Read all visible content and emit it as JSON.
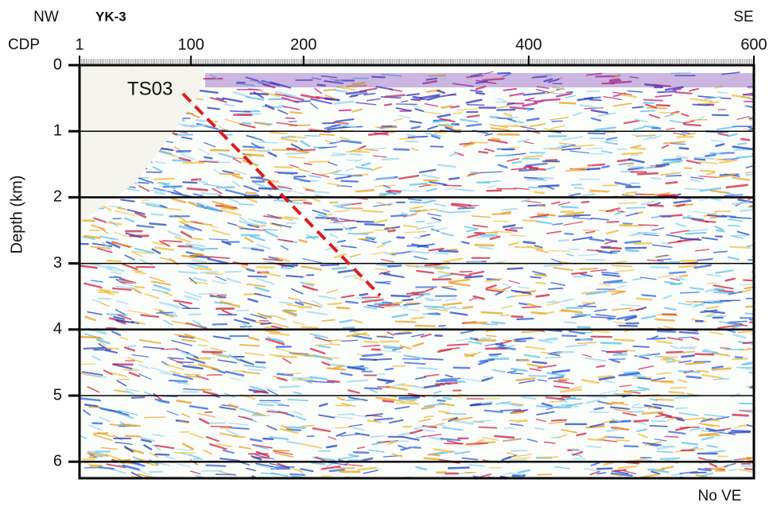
{
  "chart_data": {
    "type": "seismic",
    "profile_name": "YK-3",
    "left_direction": "NW",
    "right_direction": "SE",
    "x_label": "CDP",
    "y_label": "Depth (km)",
    "xlim": [
      1,
      600
    ],
    "xticks": [
      1,
      100,
      200,
      400,
      600
    ],
    "ylim": [
      0,
      6.25
    ],
    "yticks": [
      0,
      1,
      2,
      3,
      4,
      5,
      6
    ],
    "y_inverted": true,
    "grid": true,
    "fault_label": "TS03",
    "fault_color": "#e01b1b",
    "note": "No VE"
  }
}
